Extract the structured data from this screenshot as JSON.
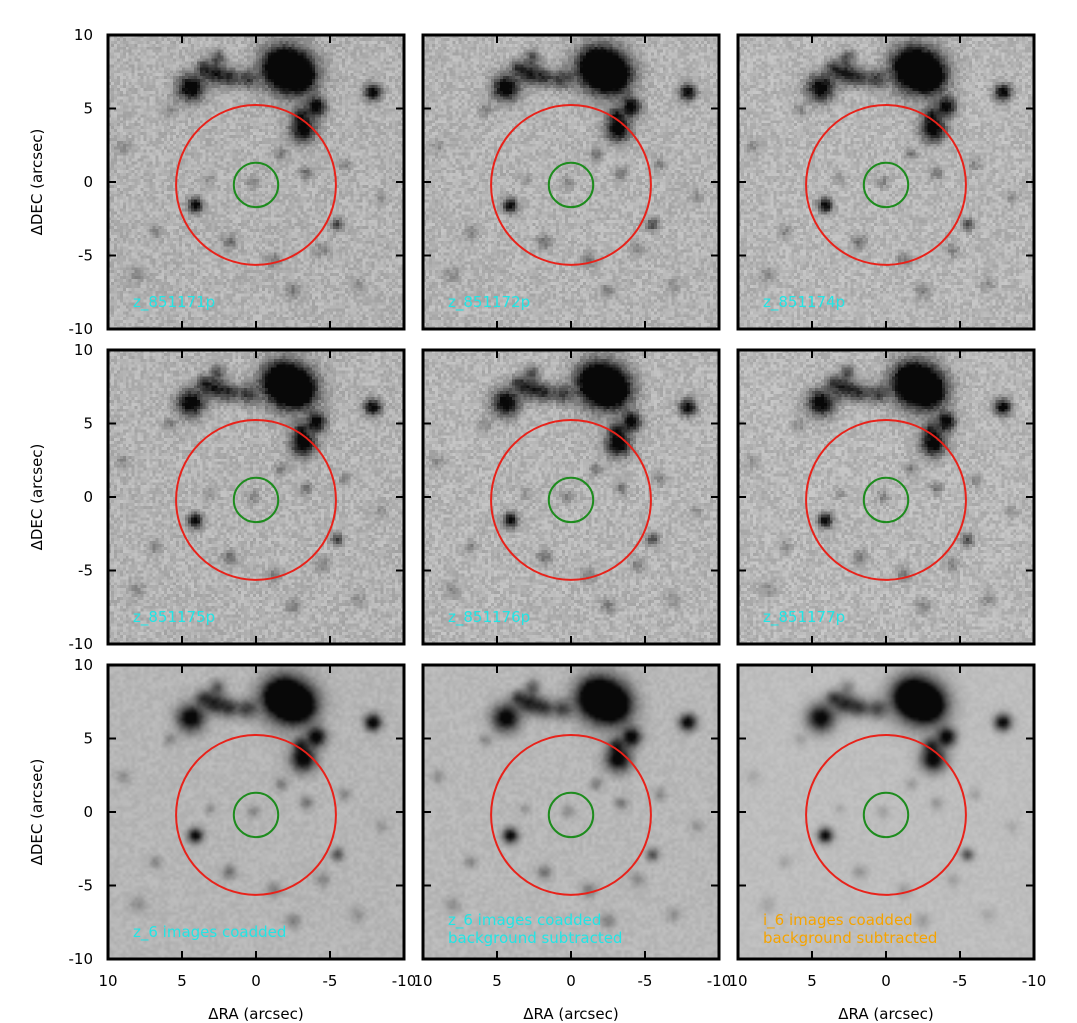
{
  "figure": {
    "x_axis_label": "ΔRA (arcsec)",
    "y_axis_label": "ΔDEC (arcsec)",
    "x_range": [
      10,
      -10
    ],
    "y_range": [
      -10,
      10
    ],
    "x_ticks": [
      "10",
      "5",
      "0",
      "-5",
      "-10"
    ],
    "y_ticks": [
      "10",
      "5",
      "0",
      "-5",
      "-10"
    ],
    "large_circle": {
      "center": [
        0,
        -0.2
      ],
      "radius": 5.4,
      "color": "#e8221a"
    },
    "small_circle": {
      "center": [
        0,
        -0.2
      ],
      "radius": 1.5,
      "color": "#1e8c1e"
    },
    "label_colors": {
      "z": "#22e5e5",
      "i": "#f5a300"
    }
  },
  "panels": [
    {
      "label_lines": [
        "z_851171p"
      ],
      "band": "z",
      "noise": 0.09,
      "smooth": false,
      "bg": 178
    },
    {
      "label_lines": [
        "z_851172p"
      ],
      "band": "z",
      "noise": 0.09,
      "smooth": false,
      "bg": 180
    },
    {
      "label_lines": [
        "z_851174p"
      ],
      "band": "z",
      "noise": 0.09,
      "smooth": false,
      "bg": 182
    },
    {
      "label_lines": [
        "z_851175p"
      ],
      "band": "z",
      "noise": 0.09,
      "smooth": false,
      "bg": 179
    },
    {
      "label_lines": [
        "z_851176p"
      ],
      "band": "z",
      "noise": 0.09,
      "smooth": false,
      "bg": 181
    },
    {
      "label_lines": [
        "z_851177p"
      ],
      "band": "z",
      "noise": 0.09,
      "smooth": false,
      "bg": 183
    },
    {
      "label_lines": [
        "z_6 images coadded"
      ],
      "band": "z",
      "noise": 0.045,
      "smooth": true,
      "bg": 182
    },
    {
      "label_lines": [
        "z_6 images coadded",
        "background subtracted"
      ],
      "band": "z",
      "noise": 0.045,
      "smooth": true,
      "bg": 184
    },
    {
      "label_lines": [
        "i_6 images coadded",
        "background subtracted"
      ],
      "band": "i",
      "noise": 0.03,
      "smooth": true,
      "bg": 190
    }
  ]
}
